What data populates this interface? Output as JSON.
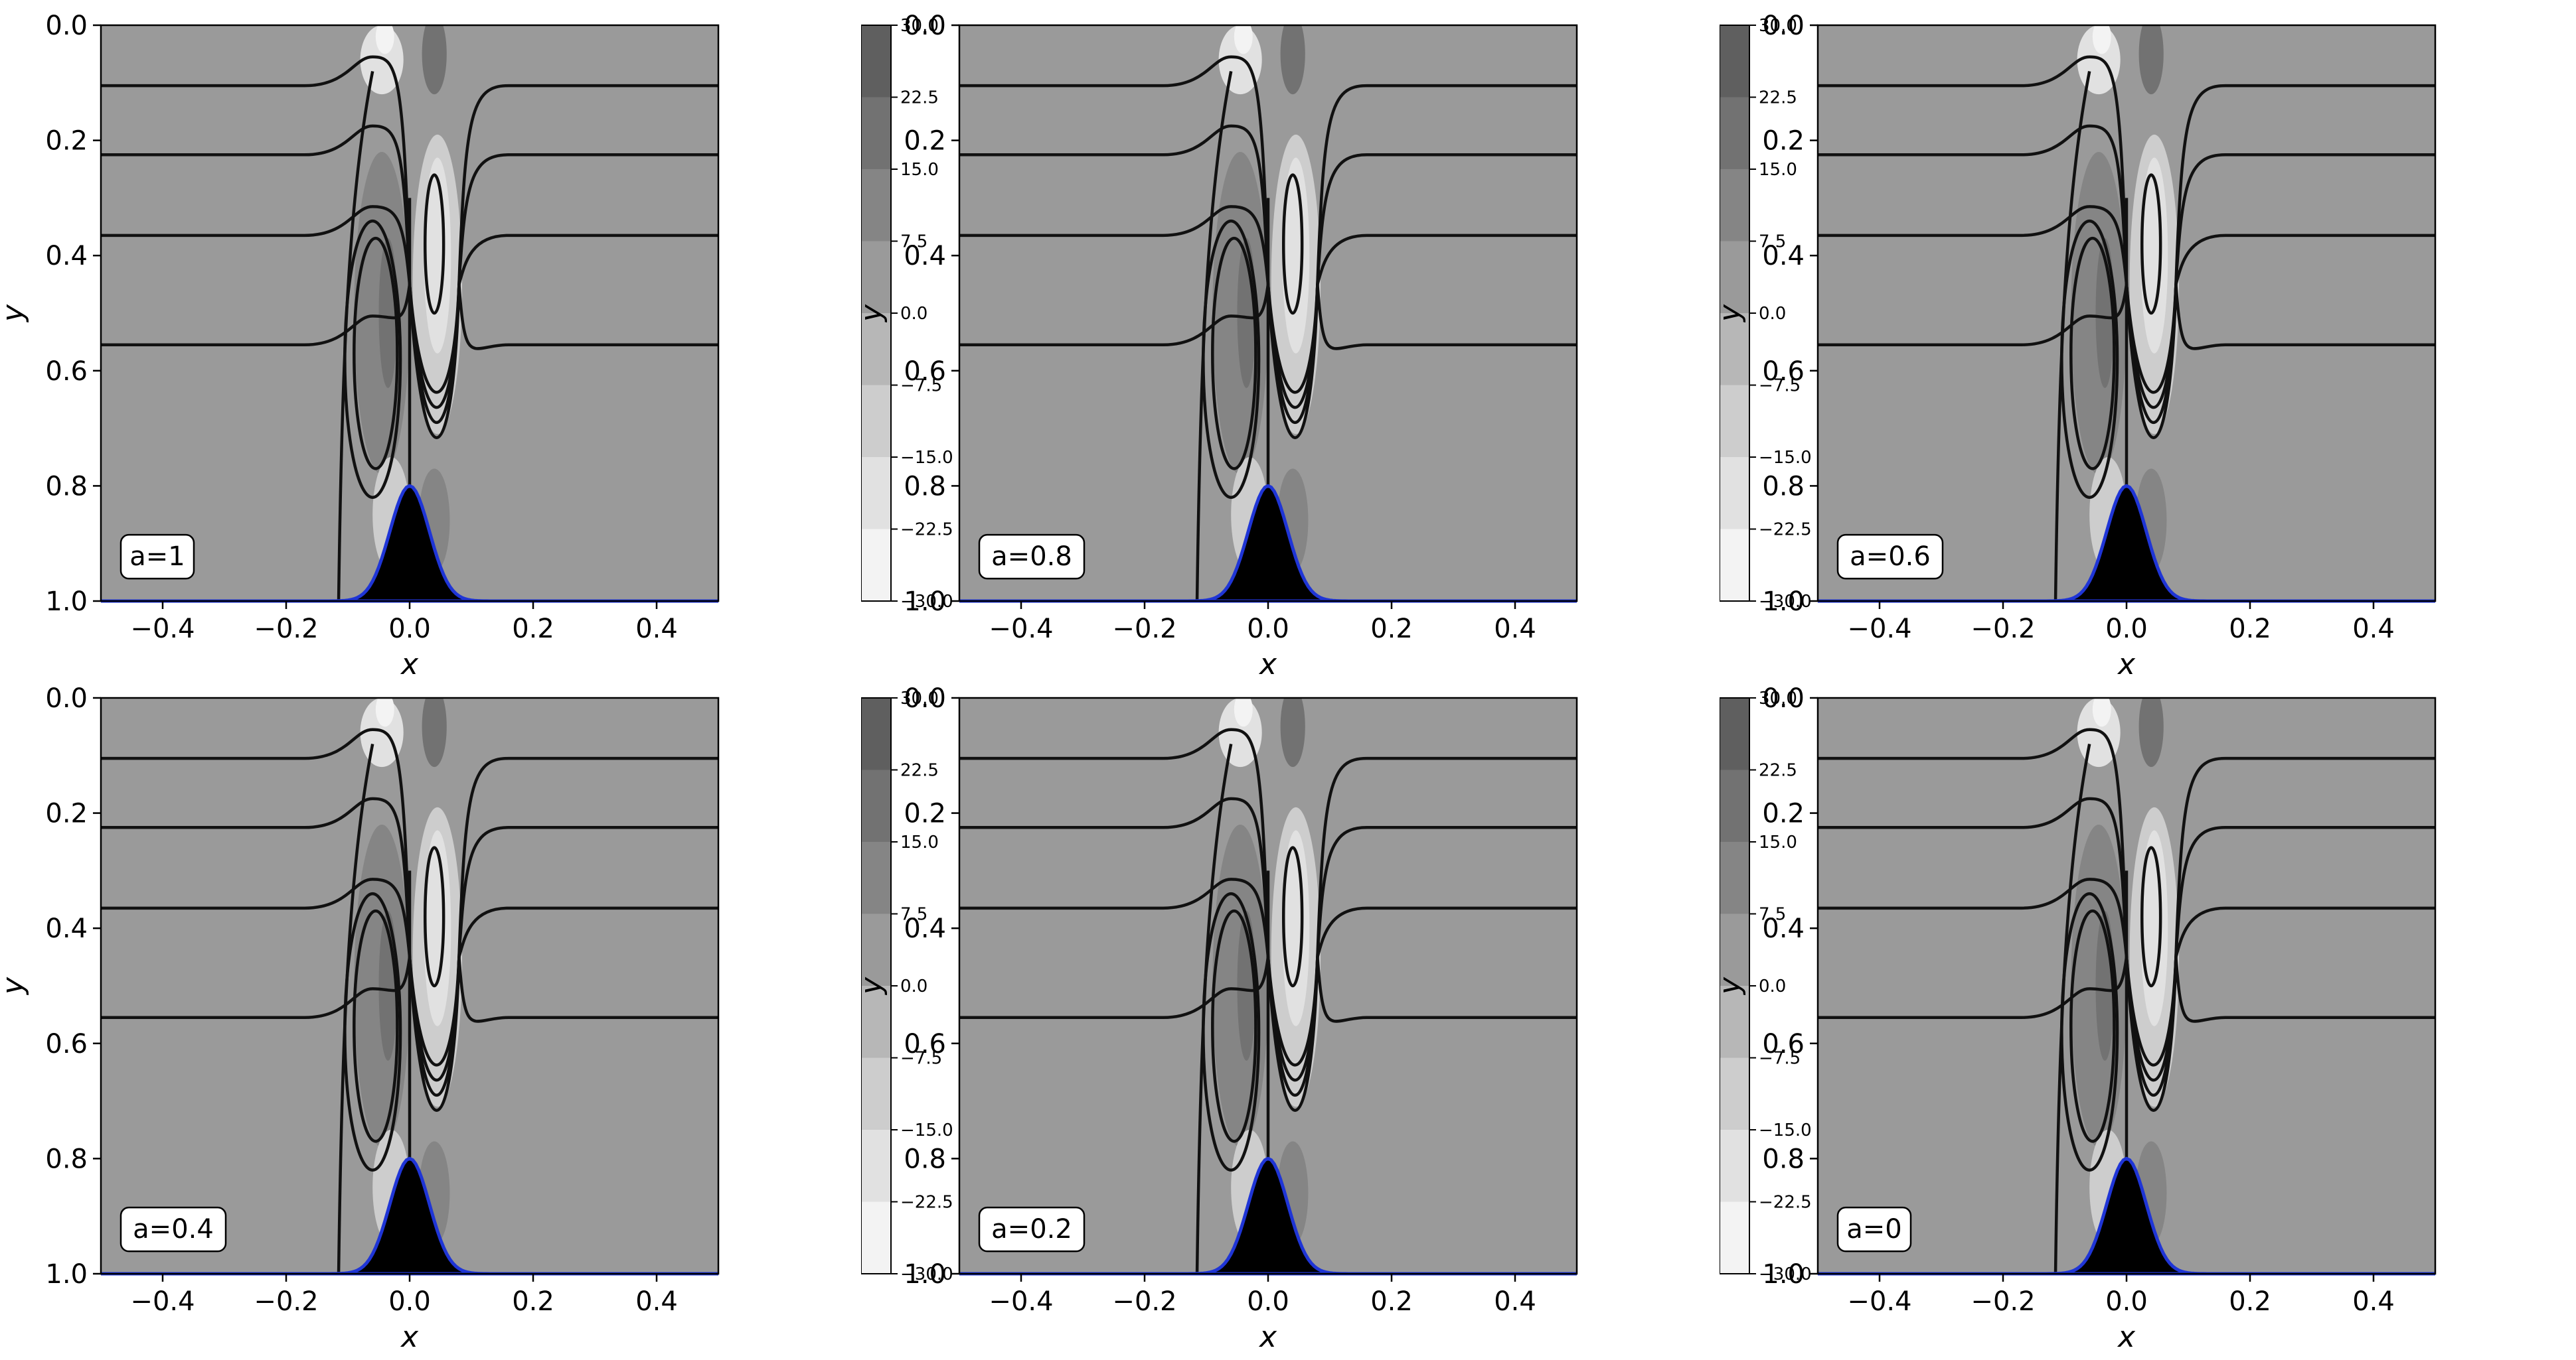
{
  "chart_data": [
    {
      "type": "contour",
      "label": "a=1",
      "xlabel": "x",
      "ylabel": "y",
      "xlim": [
        -0.5,
        0.5
      ],
      "ylim": [
        1.0,
        0.0
      ],
      "y_inverted": true,
      "xticks": [
        "−0.4",
        "−0.2",
        "0.0",
        "0.2",
        "0.4"
      ],
      "yticks": [
        "0.0",
        "0.2",
        "0.4",
        "0.6",
        "0.8",
        "1.0"
      ],
      "colorbar": {
        "min": -30.0,
        "max": 30.0,
        "ticks": [
          "30.0",
          "22.5",
          "15.0",
          "7.5",
          "0.0",
          "−7.5",
          "−15.0",
          "−22.5",
          "−30.0"
        ]
      },
      "streamline_levels_y": [
        0.105,
        0.225,
        0.365,
        0.555
      ],
      "terrain": {
        "shape": "gaussian",
        "peak_x": 0.0,
        "peak_y": 0.8,
        "base_y": 1.0
      },
      "grid": false
    },
    {
      "type": "contour",
      "label": "a=0.8",
      "xlabel": "x",
      "ylabel": "y",
      "xlim": [
        -0.5,
        0.5
      ],
      "ylim": [
        1.0,
        0.0
      ],
      "y_inverted": true,
      "xticks": [
        "−0.4",
        "−0.2",
        "0.0",
        "0.2",
        "0.4"
      ],
      "yticks": [
        "0.0",
        "0.2",
        "0.4",
        "0.6",
        "0.8",
        "1.0"
      ],
      "colorbar": {
        "min": -30.0,
        "max": 30.0,
        "ticks": [
          "30.0",
          "22.5",
          "15.0",
          "7.5",
          "0.0",
          "−7.5",
          "−15.0",
          "−22.5",
          "−30.0"
        ]
      },
      "streamline_levels_y": [
        0.105,
        0.225,
        0.365,
        0.555
      ],
      "terrain": {
        "shape": "gaussian",
        "peak_x": 0.0,
        "peak_y": 0.8,
        "base_y": 1.0
      },
      "grid": false
    },
    {
      "type": "contour",
      "label": "a=0.6",
      "xlabel": "x",
      "ylabel": "y",
      "xlim": [
        -0.5,
        0.5
      ],
      "ylim": [
        1.0,
        0.0
      ],
      "y_inverted": true,
      "xticks": [
        "−0.4",
        "−0.2",
        "0.0",
        "0.2",
        "0.4"
      ],
      "yticks": [
        "0.0",
        "0.2",
        "0.4",
        "0.6",
        "0.8",
        "1.0"
      ],
      "colorbar": {
        "min": -30.0,
        "max": 30.0,
        "ticks": [
          "30.0",
          "22.5",
          "15.0",
          "7.5",
          "0.0",
          "−7.5",
          "−15.0",
          "−22.5",
          "−30.0"
        ]
      },
      "streamline_levels_y": [
        0.105,
        0.225,
        0.365,
        0.555
      ],
      "terrain": {
        "shape": "gaussian",
        "peak_x": 0.0,
        "peak_y": 0.8,
        "base_y": 1.0
      },
      "grid": false
    },
    {
      "type": "contour",
      "label": "a=0.4",
      "xlabel": "x",
      "ylabel": "y",
      "xlim": [
        -0.5,
        0.5
      ],
      "ylim": [
        1.0,
        0.0
      ],
      "y_inverted": true,
      "xticks": [
        "−0.4",
        "−0.2",
        "0.0",
        "0.2",
        "0.4"
      ],
      "yticks": [
        "0.0",
        "0.2",
        "0.4",
        "0.6",
        "0.8",
        "1.0"
      ],
      "colorbar": {
        "min": -30.0,
        "max": 30.0,
        "ticks": [
          "30.0",
          "22.5",
          "15.0",
          "7.5",
          "0.0",
          "−7.5",
          "−15.0",
          "−22.5",
          "−30.0"
        ]
      },
      "streamline_levels_y": [
        0.105,
        0.225,
        0.365,
        0.555
      ],
      "terrain": {
        "shape": "gaussian",
        "peak_x": 0.0,
        "peak_y": 0.8,
        "base_y": 1.0
      },
      "grid": false
    },
    {
      "type": "contour",
      "label": "a=0.2",
      "xlabel": "x",
      "ylabel": "y",
      "xlim": [
        -0.5,
        0.5
      ],
      "ylim": [
        1.0,
        0.0
      ],
      "y_inverted": true,
      "xticks": [
        "−0.4",
        "−0.2",
        "0.0",
        "0.2",
        "0.4"
      ],
      "yticks": [
        "0.0",
        "0.2",
        "0.4",
        "0.6",
        "0.8",
        "1.0"
      ],
      "colorbar": {
        "min": -30.0,
        "max": 30.0,
        "ticks": [
          "30.0",
          "22.5",
          "15.0",
          "7.5",
          "0.0",
          "−7.5",
          "−15.0",
          "−22.5",
          "−30.0"
        ]
      },
      "streamline_levels_y": [
        0.105,
        0.225,
        0.365,
        0.555
      ],
      "terrain": {
        "shape": "gaussian",
        "peak_x": 0.0,
        "peak_y": 0.8,
        "base_y": 1.0
      },
      "grid": false
    },
    {
      "type": "contour",
      "label": "a=0",
      "xlabel": "x",
      "ylabel": "y",
      "xlim": [
        -0.5,
        0.5
      ],
      "ylim": [
        1.0,
        0.0
      ],
      "y_inverted": true,
      "xticks": [
        "−0.4",
        "−0.2",
        "0.0",
        "0.2",
        "0.4"
      ],
      "yticks": [
        "0.0",
        "0.2",
        "0.4",
        "0.6",
        "0.8",
        "1.0"
      ],
      "colorbar": {
        "min": -30.0,
        "max": 30.0,
        "ticks": [
          "30.0",
          "22.5",
          "15.0",
          "7.5",
          "0.0",
          "−7.5",
          "−15.0",
          "−22.5",
          "−30.0"
        ]
      },
      "streamline_levels_y": [
        0.105,
        0.225,
        0.365,
        0.555
      ],
      "terrain": {
        "shape": "gaussian",
        "peak_x": 0.0,
        "peak_y": 0.8,
        "base_y": 1.0
      },
      "grid": false
    }
  ],
  "colors": {
    "background_field": "#9a9a9a",
    "streamline": "#111111",
    "terrain_fill": "#000000",
    "terrain_outline": "#1f35d6",
    "colorbar_levels": [
      "#f3f3f3",
      "#e1e1e1",
      "#cdcdcd",
      "#b7b7b7",
      "#9a9a9a",
      "#858585",
      "#727272",
      "#5f5f5f"
    ]
  }
}
